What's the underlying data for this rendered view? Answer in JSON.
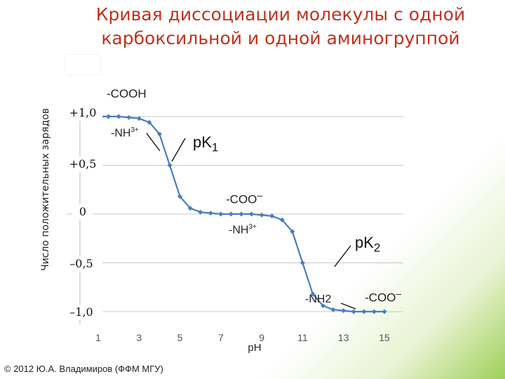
{
  "slide": {
    "title_line1": "Кривая диссоциации молекулы с одной",
    "title_line2": "карбоксильной и одной аминогруппой",
    "copyright": "© 2012 Ю.А. Владимиров (ФФМ МГУ)"
  },
  "chart_data": {
    "type": "line",
    "xlabel": "pH",
    "ylabel": "Число положительных зарядов",
    "xlim": [
      1,
      15
    ],
    "ylim": [
      -1.0,
      1.0
    ],
    "xticks": [
      "1",
      "3",
      "5",
      "7",
      "9",
      "11",
      "13",
      "15"
    ],
    "yticks": [
      "+1,0",
      "+0,5",
      "0",
      "–0,5",
      "–1,0"
    ],
    "grid": "horizontal",
    "color": "#4a7ebb",
    "series": [
      {
        "x": [
          1,
          1.5,
          2,
          2.5,
          3,
          3.5,
          4,
          4.5,
          5,
          5.5,
          6,
          6.5,
          7,
          7.5,
          8,
          8.5,
          9,
          9.5,
          10,
          10.5,
          11,
          11.5,
          12,
          12.5,
          13,
          13.5,
          14,
          14.5,
          15
        ],
        "y": [
          1.0,
          1.0,
          1.0,
          0.99,
          0.98,
          0.94,
          0.82,
          0.5,
          0.18,
          0.06,
          0.02,
          0.01,
          0.0,
          0.0,
          0.0,
          0.0,
          -0.01,
          -0.02,
          -0.06,
          -0.18,
          -0.5,
          -0.82,
          -0.94,
          -0.98,
          -0.99,
          -1.0,
          -1.0,
          -1.0,
          -1.0
        ]
      }
    ],
    "annotations": {
      "cooh": "-COOH",
      "nh3_1": "-NH",
      "nh3_1_sup": "3+",
      "pk1": "pK",
      "pk1_sub": "1",
      "coo_1": "-COO",
      "coo_1_sup": "–",
      "nh3_2": "-NH",
      "nh3_2_sup": "3+",
      "pk2": "pK",
      "pk2_sub": "2",
      "nh2": "-NH2",
      "coo_2": "-COO",
      "coo_2_sup": "–"
    }
  }
}
